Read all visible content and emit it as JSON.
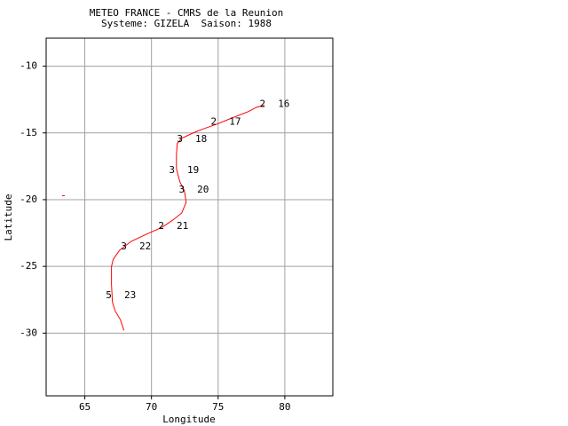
{
  "chart_data": {
    "type": "line",
    "title": [
      "METEO FRANCE - CMRS de la Reunion",
      "Systeme: GIZELA  Saison: 1988"
    ],
    "x_label": "Longitude",
    "y_label": "Latitude",
    "xlim": [
      62.1,
      83.6
    ],
    "ylim": [
      -34.7,
      -7.9
    ],
    "xticks": [
      65,
      70,
      75,
      80
    ],
    "yticks": [
      -10,
      -15,
      -20,
      -25,
      -30
    ],
    "grid": true,
    "grid_color": "#a0a0a0",
    "series": [
      {
        "color": "#ff0000",
        "x": [
          78.47,
          77.9,
          77.27,
          76.07,
          74.93,
          73.8,
          73.13,
          72.27,
          71.93,
          71.87,
          71.87,
          72.13,
          72.47,
          72.6,
          72.27,
          71.6,
          70.8,
          69.6,
          68.47,
          67.6,
          67.13,
          67.0,
          67.0,
          67.07,
          67.27,
          67.67,
          67.93
        ],
        "values": [
          -12.93,
          -13.07,
          -13.4,
          -13.87,
          -14.33,
          -14.73,
          -15.0,
          -15.4,
          -15.8,
          -16.67,
          -17.67,
          -18.67,
          -19.33,
          -20.2,
          -21.0,
          -21.53,
          -22.07,
          -22.6,
          -23.13,
          -23.8,
          -24.47,
          -25.0,
          -26.33,
          -27.67,
          -28.33,
          -29.0,
          -29.8
        ]
      }
    ],
    "fixes": [
      {
        "x": 78.33,
        "y": -12.87,
        "intensity": 2,
        "day": 16
      },
      {
        "x": 74.67,
        "y": -14.2,
        "intensity": 2,
        "day": 17
      },
      {
        "x": 72.13,
        "y": -15.47,
        "intensity": 3,
        "day": 18
      },
      {
        "x": 71.53,
        "y": -17.8,
        "intensity": 3,
        "day": 19
      },
      {
        "x": 72.27,
        "y": -19.27,
        "intensity": 3,
        "day": 20
      },
      {
        "x": 70.73,
        "y": -22.0,
        "intensity": 2,
        "day": 21
      },
      {
        "x": 67.93,
        "y": -23.53,
        "intensity": 3,
        "day": 22
      },
      {
        "x": 66.8,
        "y": -27.2,
        "intensity": 5,
        "day": 23
      }
    ],
    "marker": {
      "x": 63.4,
      "y": -19.7,
      "color": "#ff0000"
    }
  }
}
